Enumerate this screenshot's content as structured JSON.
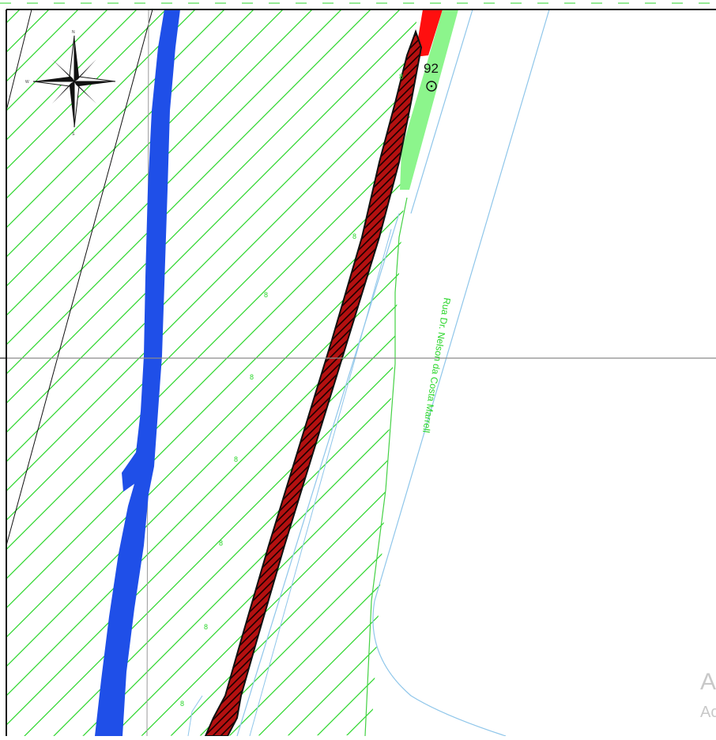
{
  "map": {
    "point_label": "92",
    "street_label": "Rua Dr. Nelson da Costa Marrell",
    "compass": {
      "north": "N",
      "south": "S",
      "west": "W"
    },
    "contour_labels": [
      "8",
      "8",
      "8",
      "8",
      "8",
      "8",
      "8",
      "8"
    ]
  },
  "colors": {
    "river": "#1f4fe8",
    "hatch": "#2bd62b",
    "channel_fill": "#c01010",
    "strip_red": "#ff0f0f",
    "strip_green": "#8cf58c",
    "road_line": "#8fc6ea",
    "lot_line": "#44d144"
  },
  "watermark": {
    "main": "A",
    "sub": "Ac"
  }
}
